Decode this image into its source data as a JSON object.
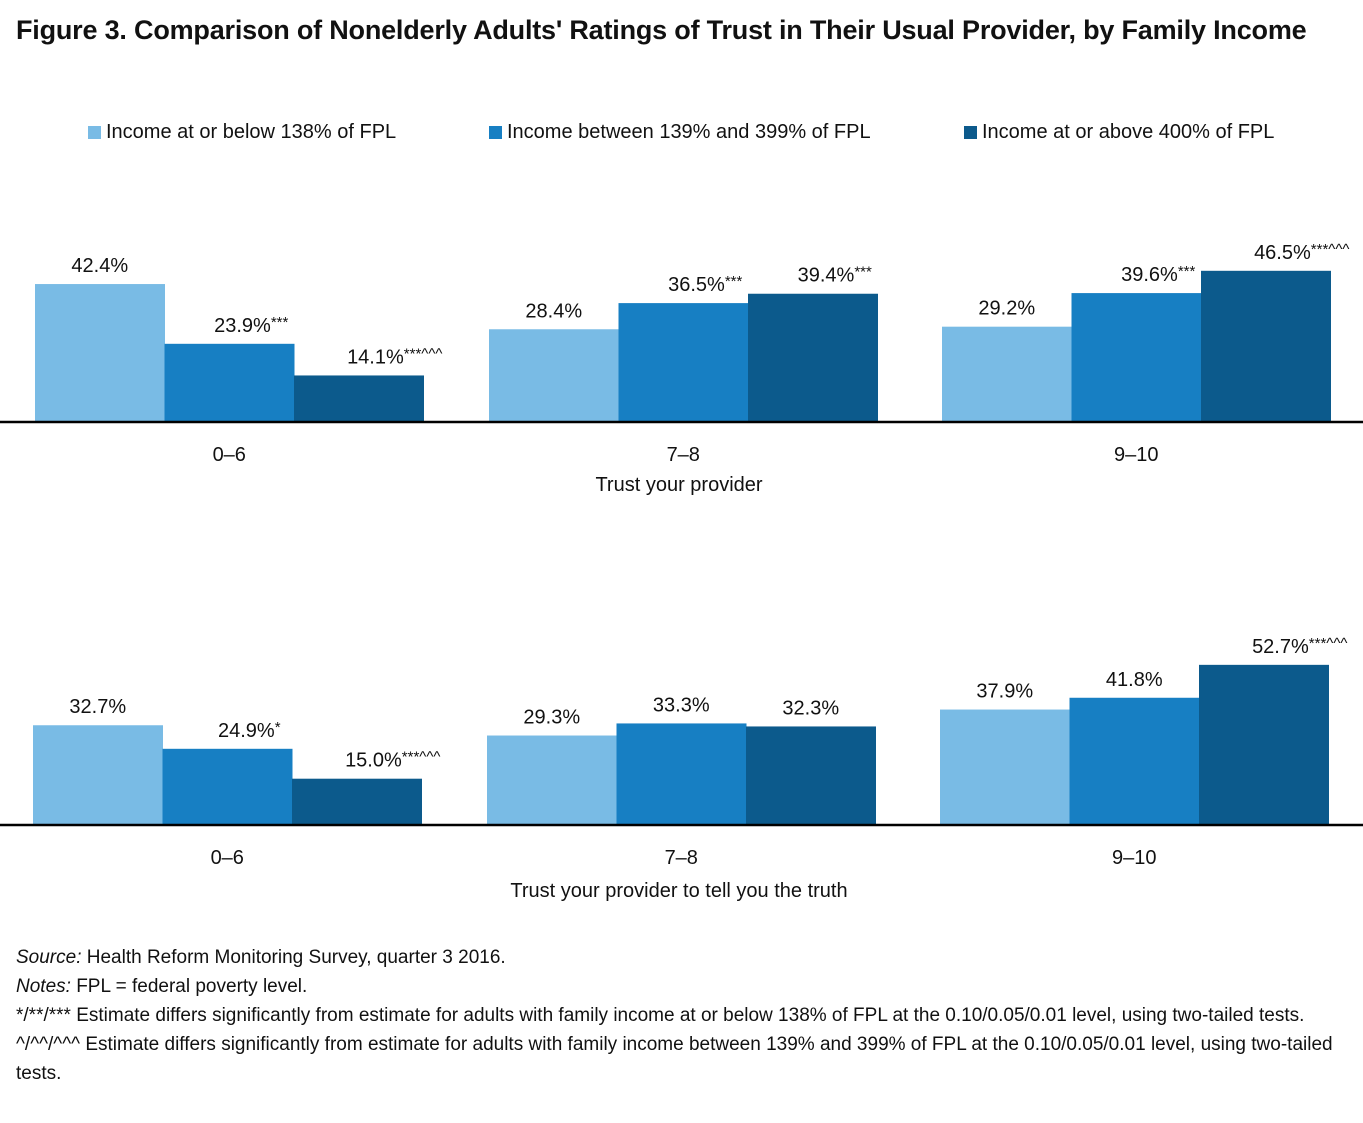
{
  "title": "Figure 3. Comparison of Nonelderly Adults' Ratings of Trust in Their Usual Provider, by Family Income",
  "legend": [
    {
      "label": "Income at or below 138% of FPL",
      "color": "#79BBE5"
    },
    {
      "label": "Income between 139% and 399% of FPL",
      "color": "#177FC3"
    },
    {
      "label": "Income at or above 400% of FPL",
      "color": "#0C5A8C"
    }
  ],
  "chart_data": [
    {
      "type": "bar",
      "title": "",
      "xlabel": "Trust your provider",
      "ylabel": "",
      "ylim": [
        0,
        50
      ],
      "grid": false,
      "legend_position": "top",
      "categories": [
        "0–6",
        "7–8",
        "9–10"
      ],
      "series": [
        {
          "name": "Income at or below 138% of FPL",
          "values": [
            42.4,
            28.4,
            29.2
          ],
          "labels": [
            "42.4%",
            "28.4%",
            "29.2%"
          ]
        },
        {
          "name": "Income between 139% and 399% of FPL",
          "values": [
            23.9,
            36.5,
            39.6
          ],
          "labels": [
            "23.9%***",
            "36.5%***",
            "39.6%***"
          ]
        },
        {
          "name": "Income at or above 400% of FPL",
          "values": [
            14.1,
            39.4,
            46.5
          ],
          "labels": [
            "14.1%***^^^",
            "39.4%***",
            "46.5%***^^^"
          ]
        }
      ]
    },
    {
      "type": "bar",
      "title": "",
      "xlabel": "Trust your provider to tell you the truth",
      "ylabel": "",
      "ylim": [
        0,
        55
      ],
      "grid": false,
      "legend_position": "top",
      "categories": [
        "0–6",
        "7–8",
        "9–10"
      ],
      "series": [
        {
          "name": "Income at or below 138% of FPL",
          "values": [
            32.7,
            29.3,
            37.9
          ],
          "labels": [
            "32.7%",
            "29.3%",
            "37.9%"
          ]
        },
        {
          "name": "Income between 139% and 399% of FPL",
          "values": [
            24.9,
            33.3,
            41.8
          ],
          "labels": [
            "24.9%*",
            "33.3%",
            "41.8%"
          ]
        },
        {
          "name": "Income at or above 400% of FPL",
          "values": [
            15.0,
            32.3,
            52.7
          ],
          "labels": [
            "15.0%***^^^",
            "32.3%",
            "52.7%***^^^"
          ]
        }
      ]
    }
  ],
  "notes": {
    "source_label": "Source:",
    "source_text": " Health Reform Monitoring Survey, quarter 3 2016.",
    "notes_label": "Notes:",
    "notes_text": " FPL = federal poverty level.",
    "footnote1": "*/**/*** Estimate differs significantly from estimate for adults with family income at or below 138% of FPL at the 0.10/0.05/0.01 level, using two-tailed tests.",
    "footnote2": "^/^^/^^^ Estimate differs significantly from estimate for adults with family income between 139% and 399% of FPL at the 0.10/0.05/0.01 level, using two-tailed tests."
  }
}
